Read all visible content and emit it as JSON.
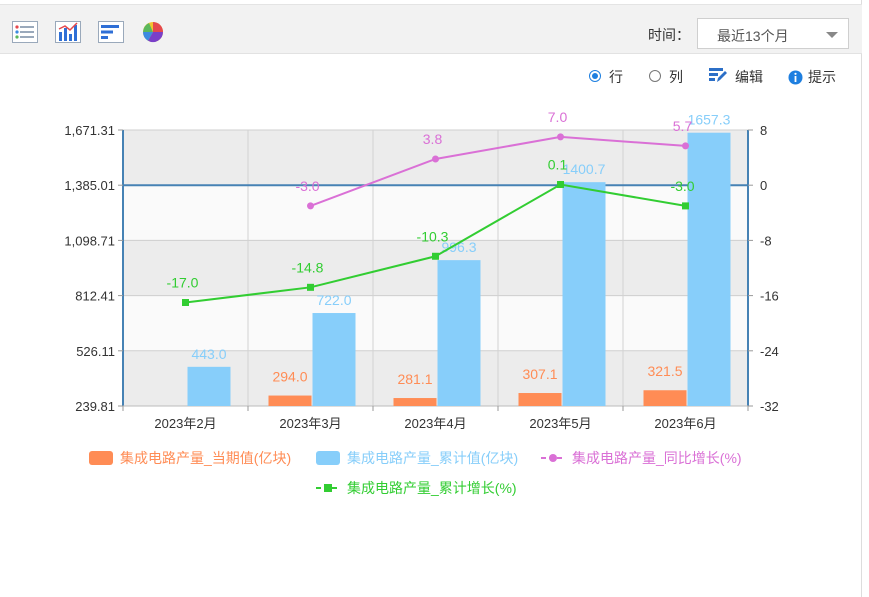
{
  "toolbar": {
    "time_label": "时间：",
    "time_value": "最近13个月",
    "icons": [
      "list-view-icon",
      "bar-chart-icon",
      "horizontal-bar-icon",
      "pie-chart-icon"
    ]
  },
  "options": {
    "row_label": "行",
    "col_label": "列",
    "edit_label": "编辑",
    "hint_label": "提示",
    "selected": "row"
  },
  "colors": {
    "current": "#ff8c55",
    "cumulative": "#87cefa",
    "yoy": "#da70d6",
    "cum_growth": "#32cd32",
    "axis": "#4682b4"
  },
  "chart_data": {
    "type": "bar",
    "categories": [
      "2023年2月",
      "2023年3月",
      "2023年4月",
      "2023年5月",
      "2023年6月"
    ],
    "series": [
      {
        "name": "集成电路产量_当期值(亿块)",
        "kind": "bar",
        "axis": "left",
        "values": [
          null,
          294.0,
          281.1,
          307.1,
          321.5
        ],
        "labels": [
          "",
          "294.0",
          "281.1",
          "307.1",
          "321.5"
        ]
      },
      {
        "name": "集成电路产量_累计值(亿块)",
        "kind": "bar",
        "axis": "left",
        "values": [
          443.0,
          722.0,
          996.3,
          1400.7,
          1657.3
        ],
        "labels": [
          "443.0",
          "722.0",
          "996.3",
          "1400.7",
          "1657.3"
        ]
      },
      {
        "name": "集成电路产量_同比增长(%)",
        "kind": "line",
        "axis": "right",
        "values": [
          null,
          -3.0,
          3.8,
          7.0,
          5.7
        ],
        "labels": [
          "",
          "-3.0",
          "3.8",
          "7.0",
          "5.7"
        ]
      },
      {
        "name": "集成电路产量_累计增长(%)",
        "kind": "line",
        "axis": "right",
        "values": [
          -17.0,
          -14.8,
          -10.3,
          0.1,
          -3.0
        ],
        "labels": [
          "-17.0",
          "-14.8",
          "-10.3",
          "0.1",
          "-3.0"
        ]
      }
    ],
    "yleft": {
      "ticks": [
        "1,671.31",
        "1,385.01",
        "1,098.71",
        "812.41",
        "526.11",
        "239.81"
      ],
      "min": 239.81,
      "max": 1671.31
    },
    "yright": {
      "ticks": [
        "8",
        "0",
        "-8",
        "-16",
        "-24",
        "-32"
      ],
      "min": -32,
      "max": 8
    },
    "legend_position": "bottom",
    "grid": true
  }
}
